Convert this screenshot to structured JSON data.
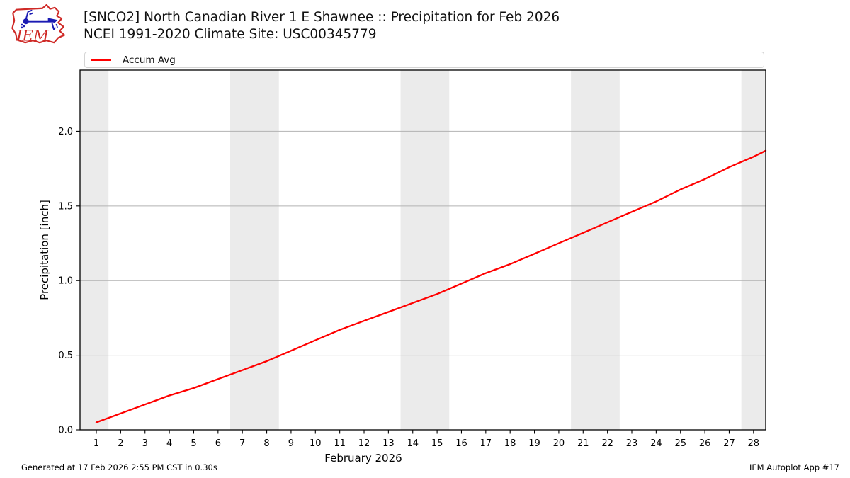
{
  "header": {
    "title_line1": "[SNCO2] North Canadian River 1 E Shawnee :: Precipitation for Feb 2026",
    "title_line2": "NCEI 1991-2020 Climate Site: USC00345779",
    "logo_text": "IEM"
  },
  "legend": {
    "items": [
      {
        "label": "Accum Avg",
        "color": "#ff0000"
      }
    ]
  },
  "footer": {
    "left": "Generated at 17 Feb 2026 2:55 PM CST in 0.30s",
    "right": "IEM Autoplot App #17"
  },
  "chart_data": {
    "type": "line",
    "title": "[SNCO2] North Canadian River 1 E Shawnee :: Precipitation for Feb 2026",
    "subtitle": "NCEI 1991-2020 Climate Site: USC00345779",
    "xlabel": "February 2026",
    "ylabel": "Precipitation [inch]",
    "xlim": [
      0.33,
      28.5
    ],
    "ylim": [
      0,
      2.41
    ],
    "grid": "horizontal",
    "grid_color": "#b2b2b2",
    "band_color": "#ebebeb",
    "x_ticks": [
      1,
      2,
      3,
      4,
      5,
      6,
      7,
      8,
      9,
      10,
      11,
      12,
      13,
      14,
      15,
      16,
      17,
      18,
      19,
      20,
      21,
      22,
      23,
      24,
      25,
      26,
      27,
      28
    ],
    "x_tick_labels": [
      "1",
      "2",
      "3",
      "4",
      "5",
      "6",
      "7",
      "8",
      "9",
      "10",
      "11",
      "12",
      "13",
      "14",
      "15",
      "16",
      "17",
      "18",
      "19",
      "20",
      "21",
      "22",
      "23",
      "24",
      "25",
      "26",
      "27",
      "28"
    ],
    "y_ticks": [
      0.0,
      0.5,
      1.0,
      1.5,
      2.0
    ],
    "y_tick_labels": [
      "0.0",
      "0.5",
      "1.0",
      "1.5",
      "2.0"
    ],
    "weekend_bands": [
      [
        0.33,
        1.5
      ],
      [
        6.5,
        8.5
      ],
      [
        13.5,
        15.5
      ],
      [
        20.5,
        22.5
      ],
      [
        27.5,
        28.5
      ]
    ],
    "series": [
      {
        "name": "Accum Avg",
        "color": "#ff0000",
        "x": [
          1,
          2,
          3,
          4,
          5,
          6,
          7,
          8,
          9,
          10,
          11,
          12,
          13,
          14,
          15,
          16,
          17,
          18,
          19,
          20,
          21,
          22,
          23,
          24,
          25,
          26,
          27,
          28,
          28.5
        ],
        "y": [
          0.05,
          0.11,
          0.17,
          0.23,
          0.28,
          0.34,
          0.4,
          0.46,
          0.53,
          0.6,
          0.67,
          0.73,
          0.79,
          0.85,
          0.91,
          0.98,
          1.05,
          1.11,
          1.18,
          1.25,
          1.32,
          1.39,
          1.46,
          1.53,
          1.61,
          1.68,
          1.76,
          1.83,
          1.87
        ]
      }
    ]
  }
}
